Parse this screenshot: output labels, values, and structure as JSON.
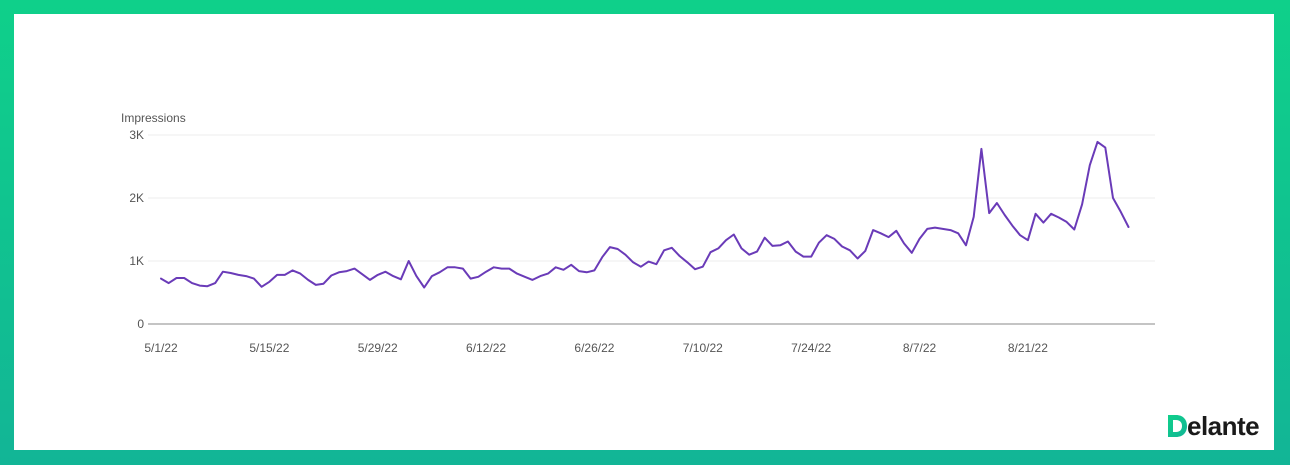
{
  "chart_data": {
    "type": "line",
    "ylabel": "Impressions",
    "ylim": [
      0,
      3000
    ],
    "y_ticks": [
      {
        "value": 0,
        "label": "0"
      },
      {
        "value": 1000,
        "label": "1K"
      },
      {
        "value": 2000,
        "label": "2K"
      },
      {
        "value": 3000,
        "label": "3K"
      }
    ],
    "x_ticks": [
      "5/1/22",
      "5/15/22",
      "5/29/22",
      "6/12/22",
      "6/26/22",
      "7/10/22",
      "7/24/22",
      "8/7/22",
      "8/21/22"
    ],
    "x_start": "5/1/22",
    "x_end": "9/2/22",
    "grid": true,
    "legend": "none",
    "series": [
      {
        "name": "",
        "color": "#6a3bb8",
        "values": [
          720,
          650,
          730,
          730,
          650,
          610,
          600,
          650,
          830,
          810,
          780,
          760,
          720,
          590,
          670,
          780,
          780,
          850,
          800,
          700,
          620,
          640,
          770,
          820,
          840,
          880,
          790,
          700,
          780,
          830,
          760,
          710,
          1000,
          760,
          580,
          760,
          820,
          900,
          900,
          880,
          720,
          750,
          830,
          900,
          880,
          880,
          800,
          750,
          700,
          760,
          800,
          900,
          860,
          940,
          840,
          820,
          850,
          1060,
          1220,
          1190,
          1100,
          980,
          910,
          990,
          950,
          1170,
          1210,
          1080,
          980,
          870,
          910,
          1140,
          1200,
          1330,
          1420,
          1200,
          1100,
          1150,
          1370,
          1240,
          1250,
          1310,
          1150,
          1070,
          1070,
          1290,
          1410,
          1350,
          1230,
          1170,
          1040,
          1160,
          1490,
          1440,
          1380,
          1480,
          1280,
          1130,
          1350,
          1510,
          1530,
          1510,
          1490,
          1440,
          1250,
          1700,
          2780,
          1760,
          1920,
          1730,
          1560,
          1410,
          1330,
          1750,
          1610,
          1750,
          1690,
          1620,
          1500,
          1900,
          2520,
          2890,
          2800,
          2000,
          1780,
          1540
        ]
      }
    ]
  },
  "brand": {
    "logo_text": "Delante",
    "logo_mark": "D",
    "logo_rest": "elante",
    "gradient_from": "#0fd08a",
    "gradient_to": "#12b596"
  }
}
